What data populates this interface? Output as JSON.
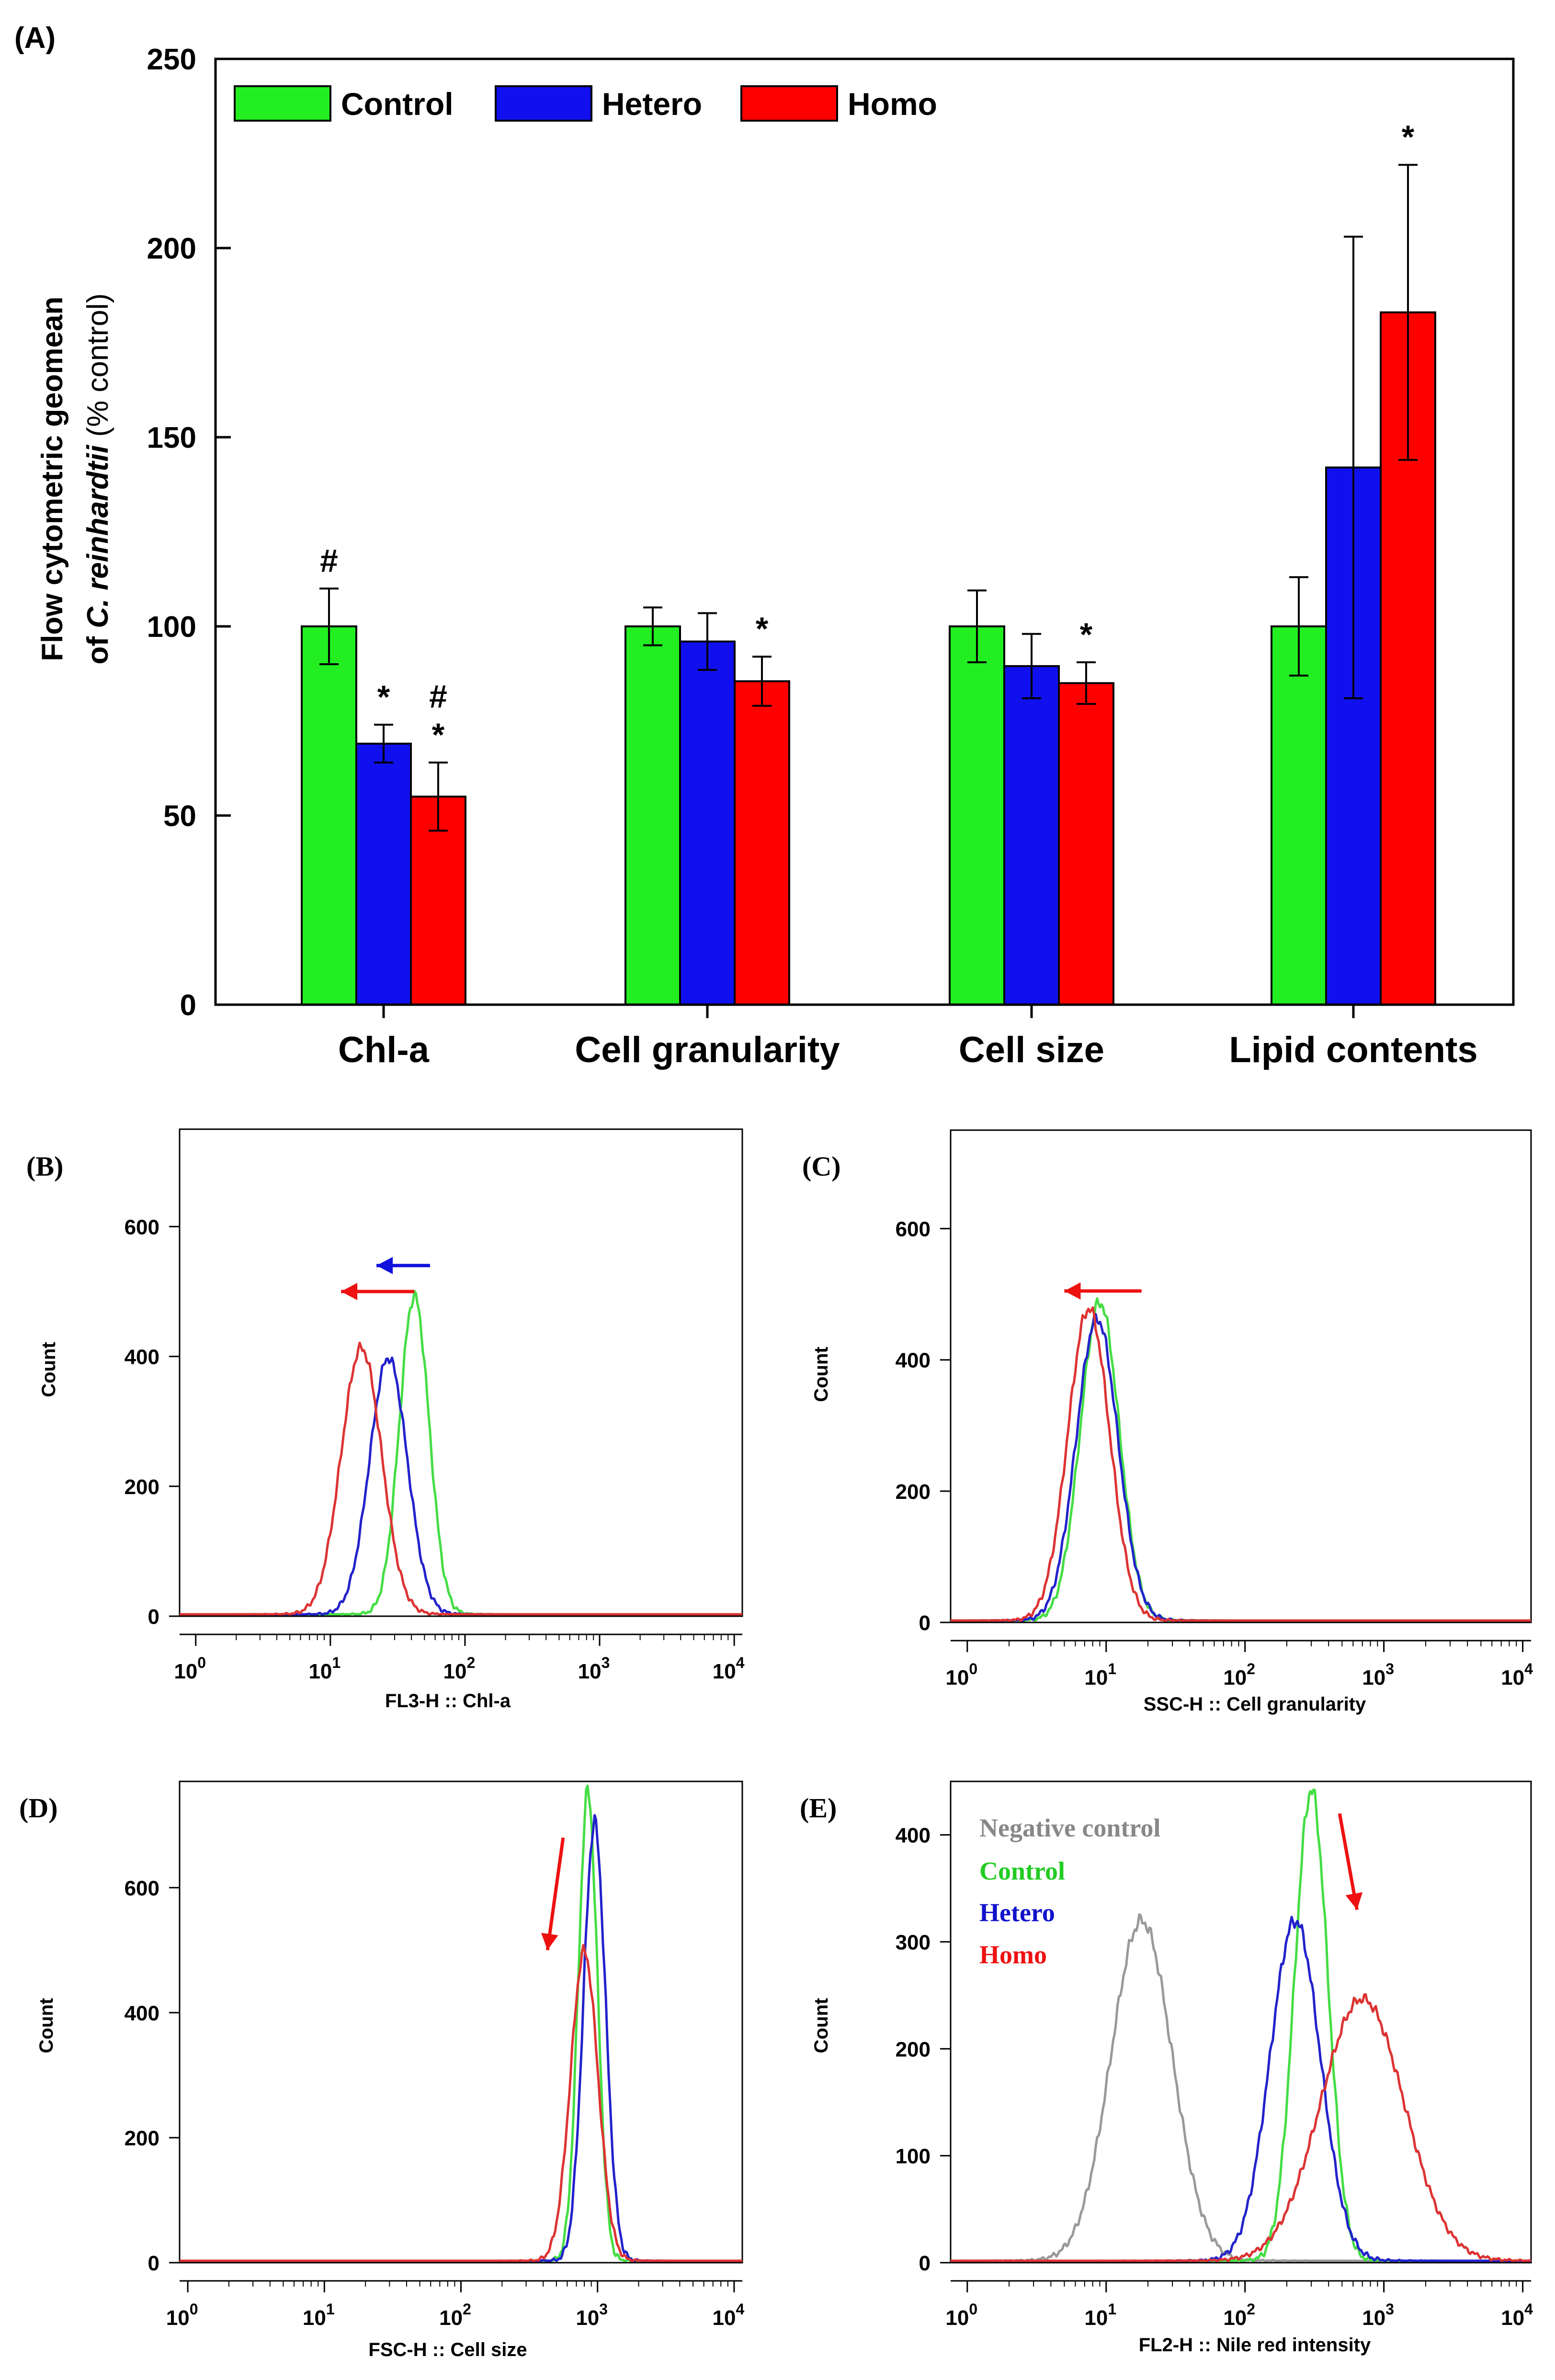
{
  "chart_data": [
    {
      "panel": "(A)",
      "type": "bar",
      "categories": [
        "Chl-a",
        "Cell granularity",
        "Cell size",
        "Lipid contents"
      ],
      "series": [
        {
          "name": "Control",
          "color": "#22ee22",
          "values": [
            100,
            100,
            100,
            100
          ],
          "errors": [
            10,
            5,
            9.5,
            13
          ],
          "marks": [
            "#",
            "",
            "",
            ""
          ]
        },
        {
          "name": "Hetero",
          "color": "#1010ee",
          "values": [
            69,
            96,
            89.5,
            142
          ],
          "errors": [
            5,
            7.5,
            8.5,
            61
          ],
          "marks": [
            "*",
            "",
            "",
            ""
          ]
        },
        {
          "name": "Homo",
          "color": "#ff0000",
          "values": [
            55,
            85.5,
            85,
            183
          ],
          "errors": [
            9,
            6.5,
            5.5,
            39
          ],
          "marks": [
            "#\n*",
            "*",
            "*",
            "*"
          ]
        }
      ],
      "ylabel_line1": "Flow cytometric geomean",
      "ylabel_line2_prefix": "of ",
      "ylabel_line2_italic": "C. reinhardtii",
      "ylabel_line2_suffix": " (% control)",
      "ylim": [
        0,
        250
      ],
      "yticks": [
        "0",
        "50",
        "100",
        "150",
        "200",
        "250"
      ],
      "legend": "top-left"
    },
    {
      "panel": "(B)",
      "type": "line",
      "xlabel": "FL3-H :: Chl-a",
      "ylabel": "Count",
      "ylim": [
        0,
        750
      ],
      "yticks": [
        "0",
        "200",
        "400",
        "600"
      ],
      "xscale": "log",
      "xticks_exp": [
        "0",
        "1",
        "2",
        "3",
        "4"
      ],
      "xrange_log": [
        -0.12,
        4.06
      ],
      "series": [
        {
          "name": "Control",
          "color": "#44dd44",
          "peak_x": 42,
          "peak_y": 490,
          "width_log": 0.11
        },
        {
          "name": "Hetero",
          "color": "#2222cc",
          "peak_x": 27,
          "peak_y": 395,
          "width_log": 0.14
        },
        {
          "name": "Homo",
          "color": "#dd3333",
          "peak_x": 17,
          "peak_y": 410,
          "width_log": 0.15
        }
      ],
      "arrows": [
        {
          "color": "#1111dd",
          "from_x": 55,
          "to_x": 22,
          "y": 540
        },
        {
          "color": "#ee1111",
          "from_x": 42,
          "to_x": 12,
          "y": 500
        }
      ]
    },
    {
      "panel": "(C)",
      "type": "line",
      "xlabel": "SSC-H :: Cell granularity",
      "ylabel": "Count",
      "ylim": [
        0,
        750
      ],
      "yticks": [
        "0",
        "200",
        "400",
        "600"
      ],
      "xscale": "log",
      "xticks_exp": [
        "0",
        "1",
        "2",
        "3",
        "4"
      ],
      "xrange_log": [
        -0.12,
        4.06
      ],
      "series": [
        {
          "name": "Control",
          "color": "#44dd44",
          "peak_x": 9,
          "peak_y": 485,
          "width_log": 0.14
        },
        {
          "name": "Hetero",
          "color": "#2222cc",
          "peak_x": 8.6,
          "peak_y": 460,
          "width_log": 0.15
        },
        {
          "name": "Homo",
          "color": "#dd3333",
          "peak_x": 7.5,
          "peak_y": 475,
          "width_log": 0.15
        }
      ],
      "arrows": [
        {
          "color": "#ee1111",
          "from_x": 18,
          "to_x": 5,
          "y": 505
        }
      ]
    },
    {
      "panel": "(D)",
      "type": "line",
      "xlabel": "FSC-H :: Cell size",
      "ylabel": "Count",
      "ylim": [
        0,
        770
      ],
      "yticks": [
        "0",
        "200",
        "400",
        "600"
      ],
      "xscale": "log",
      "xticks_exp": [
        "0",
        "1",
        "2",
        "3",
        "4"
      ],
      "xrange_log": [
        -0.06,
        4.06
      ],
      "series": [
        {
          "name": "Control",
          "color": "#44dd44",
          "peak_x": 850,
          "peak_y": 750,
          "width_log": 0.07
        },
        {
          "name": "Hetero",
          "color": "#2222cc",
          "peak_x": 950,
          "peak_y": 700,
          "width_log": 0.08
        },
        {
          "name": "Homo",
          "color": "#dd3333",
          "peak_x": 800,
          "peak_y": 495,
          "width_log": 0.1
        }
      ],
      "arrows": [
        {
          "color": "#ee1111",
          "from_x": 560,
          "to_x": 430,
          "from_y": 680,
          "to_y": 500
        }
      ]
    },
    {
      "panel": "(E)",
      "type": "line",
      "xlabel": "FL2-H :: Nile red intensity",
      "ylabel": "Count",
      "ylim": [
        0,
        450
      ],
      "yticks": [
        "0",
        "100",
        "200",
        "300",
        "400"
      ],
      "xscale": "log",
      "xticks_exp": [
        "0",
        "1",
        "2",
        "3",
        "4"
      ],
      "xrange_log": [
        -0.12,
        4.06
      ],
      "series": [
        {
          "name": "Negative control",
          "color": "#999999",
          "peak_x": 18,
          "peak_y": 318,
          "width_log": 0.22
        },
        {
          "name": "Control",
          "color": "#44dd44",
          "peak_x": 300,
          "peak_y": 440,
          "width_log": 0.12
        },
        {
          "name": "Hetero",
          "color": "#2222cc",
          "peak_x": 230,
          "peak_y": 318,
          "width_log": 0.18
        },
        {
          "name": "Homo",
          "color": "#dd3333",
          "peak_x": 700,
          "peak_y": 245,
          "width_log": 0.3
        }
      ],
      "legend_colors": [
        "#888888",
        "#22cc22",
        "#1111cc",
        "#ee1111"
      ],
      "arrows": [
        {
          "color": "#ee1111",
          "from_x": 480,
          "to_x": 640,
          "from_y": 420,
          "to_y": 330
        }
      ]
    }
  ]
}
